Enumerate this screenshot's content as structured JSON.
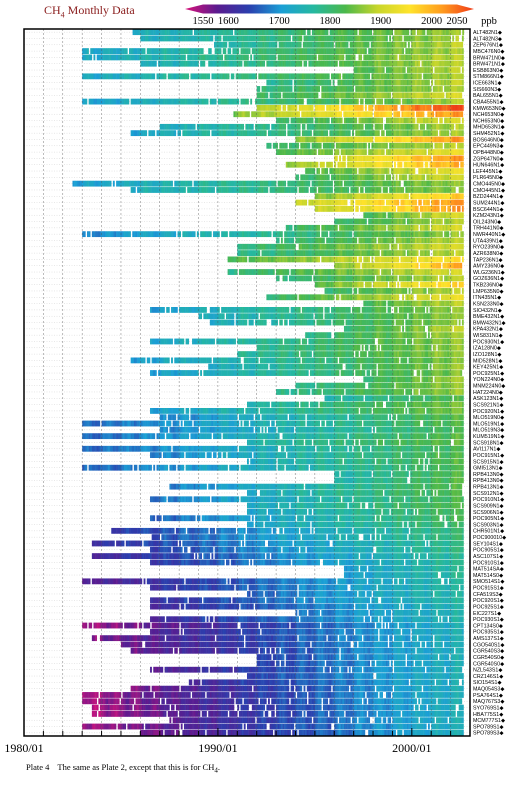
{
  "title": "CH4 Monthly Data",
  "title_prefix": "CH",
  "title_sub": "4",
  "title_rest": " Monthly Data",
  "caption_lead": "Plate 4",
  "caption_text": "The same as Plate 2, except that this is for CH",
  "caption_sub": "4",
  "caption_end": ".",
  "colorbar": {
    "ticks": [
      "1550",
      "1600",
      "1700",
      "1800",
      "1900",
      "2000",
      "2050"
    ],
    "unit": "ppb",
    "colors": [
      "#d8127a",
      "#5b1b8f",
      "#2a3fae",
      "#1b9fd6",
      "#25b8a0",
      "#4cb84a",
      "#c8d62b",
      "#ffe32b",
      "#ff9c1e",
      "#f03a18"
    ]
  },
  "chart_data": {
    "type": "heatmap",
    "title": "CH4 Monthly Data",
    "value_unit": "ppb",
    "value_range": [
      1550,
      2050
    ],
    "xlim": [
      "1980/01",
      "2002/12"
    ],
    "xticks": [
      "1980/01",
      "1990/01",
      "2000/01"
    ],
    "stations": [
      {
        "name": "ALT482N1",
        "start": 1985.6,
        "end": 2002.6,
        "lo": 1740,
        "hi": 1870
      },
      {
        "name": "ALT482N3",
        "start": 1986.0,
        "end": 2002.6,
        "lo": 1740,
        "hi": 1870
      },
      {
        "name": "ZEP676N1",
        "start": 1989.8,
        "end": 2002.6,
        "lo": 1760,
        "hi": 1880
      },
      {
        "name": "MBC476N0",
        "start": 1983.0,
        "end": 2002.6,
        "lo": 1730,
        "hi": 1870
      },
      {
        "name": "BRW471N0",
        "start": 1983.0,
        "end": 2002.6,
        "lo": 1730,
        "hi": 1880
      },
      {
        "name": "BRW471N1",
        "start": 1986.0,
        "end": 2002.6,
        "lo": 1740,
        "hi": 1880
      },
      {
        "name": "ESB863N0",
        "start": 1997.0,
        "end": 2002.6,
        "lo": 1820,
        "hi": 1880
      },
      {
        "name": "STM866N1",
        "start": 1983.0,
        "end": 2002.6,
        "lo": 1730,
        "hi": 1870
      },
      {
        "name": "ICE663N1",
        "start": 1992.5,
        "end": 2002.6,
        "lo": 1780,
        "hi": 1880
      },
      {
        "name": "SIS660N3",
        "start": 1992.0,
        "end": 2002.6,
        "lo": 1790,
        "hi": 1870
      },
      {
        "name": "BAL655N1",
        "start": 1992.0,
        "end": 2002.6,
        "lo": 1800,
        "hi": 1900
      },
      {
        "name": "CBA455N1",
        "start": 1983.0,
        "end": 2002.6,
        "lo": 1720,
        "hi": 1870
      },
      {
        "name": "KMW653N0",
        "start": 1992.0,
        "end": 2002.6,
        "lo": 1870,
        "hi": 2050
      },
      {
        "name": "NCH653N0",
        "start": 1990.8,
        "end": 2002.6,
        "lo": 1850,
        "hi": 2000
      },
      {
        "name": "NCH653N0",
        "start": 1993.0,
        "end": 2002.6,
        "lo": 1800,
        "hi": 1900
      },
      {
        "name": "MHD653N1",
        "start": 1987.0,
        "end": 2002.6,
        "lo": 1740,
        "hi": 1870
      },
      {
        "name": "SHM452N1",
        "start": 1985.5,
        "end": 2002.6,
        "lo": 1730,
        "hi": 1870
      },
      {
        "name": "BOS646N0",
        "start": 1994.0,
        "end": 2002.6,
        "lo": 1850,
        "hi": 2000
      },
      {
        "name": "EPC449N3",
        "start": 1992.5,
        "end": 2002.6,
        "lo": 1800,
        "hi": 1880
      },
      {
        "name": "OPB448N0",
        "start": 1993.0,
        "end": 2002.6,
        "lo": 1820,
        "hi": 1920
      },
      {
        "name": "ZGP647N0",
        "start": 1996.0,
        "end": 2002.6,
        "lo": 1890,
        "hi": 2000
      },
      {
        "name": "HUN646N1",
        "start": 1993.5,
        "end": 2002.6,
        "lo": 1860,
        "hi": 1980
      },
      {
        "name": "LEF445N1",
        "start": 1994.5,
        "end": 2002.6,
        "lo": 1820,
        "hi": 1920
      },
      {
        "name": "PLR645N0",
        "start": 1994.0,
        "end": 2002.6,
        "lo": 1800,
        "hi": 1900
      },
      {
        "name": "CMO445N0",
        "start": 1982.5,
        "end": 2002.6,
        "lo": 1720,
        "hi": 1860
      },
      {
        "name": "CMO445N1",
        "start": 1985.5,
        "end": 2002.6,
        "lo": 1740,
        "hi": 1860
      },
      {
        "name": "BZD244N1",
        "start": 1995.0,
        "end": 2002.6,
        "lo": 1850,
        "hi": 1960
      },
      {
        "name": "SUM244N1",
        "start": 1994.0,
        "end": 2002.6,
        "lo": 1880,
        "hi": 2000
      },
      {
        "name": "BSC644N1",
        "start": 1995.0,
        "end": 2002.6,
        "lo": 1880,
        "hi": 2000
      },
      {
        "name": "KZM243N1",
        "start": 1997.5,
        "end": 2002.6,
        "lo": 1820,
        "hi": 1900
      },
      {
        "name": "OIL243N0",
        "start": 1996.0,
        "end": 2002.6,
        "lo": 1800,
        "hi": 1880
      },
      {
        "name": "TRH441N0",
        "start": 1993.5,
        "end": 2002.6,
        "lo": 1800,
        "hi": 1900
      },
      {
        "name": "NWR440N1",
        "start": 1983.0,
        "end": 2002.6,
        "lo": 1700,
        "hi": 1860
      },
      {
        "name": "UTA439N1",
        "start": 1993.0,
        "end": 2002.6,
        "lo": 1790,
        "hi": 1880
      },
      {
        "name": "RYO239N0",
        "start": 1991.0,
        "end": 2002.6,
        "lo": 1790,
        "hi": 1900
      },
      {
        "name": "AZR638N0",
        "start": 1991.0,
        "end": 2002.6,
        "lo": 1780,
        "hi": 1880
      },
      {
        "name": "TAP236N1",
        "start": 1990.5,
        "end": 2002.6,
        "lo": 1820,
        "hi": 1940
      },
      {
        "name": "AMY236N0",
        "start": 1996.0,
        "end": 2002.6,
        "lo": 1850,
        "hi": 1990
      },
      {
        "name": "WLG236N1",
        "start": 1990.5,
        "end": 2002.6,
        "lo": 1790,
        "hi": 1900
      },
      {
        "name": "GOZ636N1",
        "start": 1993.0,
        "end": 2002.6,
        "lo": 1790,
        "hi": 1880
      },
      {
        "name": "TKB236N0",
        "start": 1995.0,
        "end": 2002.6,
        "lo": 1830,
        "hi": 1960
      },
      {
        "name": "LMP635N0",
        "start": 1995.5,
        "end": 2002.6,
        "lo": 1800,
        "hi": 1880
      },
      {
        "name": "ITN435N1",
        "start": 1992.5,
        "end": 2002.6,
        "lo": 1800,
        "hi": 1920
      },
      {
        "name": "KSN233N0",
        "start": 1997.5,
        "end": 2002.6,
        "lo": 1820,
        "hi": 1880
      },
      {
        "name": "SIO432N1",
        "start": 1986.5,
        "end": 2002.6,
        "lo": 1720,
        "hi": 1860
      },
      {
        "name": "BME432N1",
        "start": 1989.0,
        "end": 2002.6,
        "lo": 1740,
        "hi": 1860
      },
      {
        "name": "BMW432N1",
        "start": 1989.5,
        "end": 2002.6,
        "lo": 1740,
        "hi": 1860
      },
      {
        "name": "KPA432N1",
        "start": 1996.5,
        "end": 2002.6,
        "lo": 1800,
        "hi": 1880
      },
      {
        "name": "WIS831N1",
        "start": 1994.5,
        "end": 2002.6,
        "lo": 1790,
        "hi": 1870
      },
      {
        "name": "POC930N1",
        "start": 1986.5,
        "end": 2002.6,
        "lo": 1730,
        "hi": 1860
      },
      {
        "name": "IZA128N0",
        "start": 1992.0,
        "end": 2002.6,
        "lo": 1780,
        "hi": 1860
      },
      {
        "name": "IZO128N1",
        "start": 1991.0,
        "end": 2002.6,
        "lo": 1770,
        "hi": 1860
      },
      {
        "name": "MID528N1",
        "start": 1985.5,
        "end": 2002.6,
        "lo": 1720,
        "hi": 1850
      },
      {
        "name": "KEY425N1",
        "start": 1989.5,
        "end": 2002.6,
        "lo": 1740,
        "hi": 1860
      },
      {
        "name": "POC925N1",
        "start": 1986.5,
        "end": 2002.6,
        "lo": 1720,
        "hi": 1850
      },
      {
        "name": "YON224N0",
        "start": 1997.5,
        "end": 2002.6,
        "lo": 1800,
        "hi": 1870
      },
      {
        "name": "MNM224N0",
        "start": 1994.0,
        "end": 2002.6,
        "lo": 1780,
        "hi": 1860
      },
      {
        "name": "HAT224N0",
        "start": 1993.0,
        "end": 2002.6,
        "lo": 1780,
        "hi": 1860
      },
      {
        "name": "ASK123N1",
        "start": 1995.5,
        "end": 2002.6,
        "lo": 1760,
        "hi": 1830
      },
      {
        "name": "SCS921N1",
        "start": 1991.5,
        "end": 2002.6,
        "lo": 1760,
        "hi": 1850
      },
      {
        "name": "POC920N1",
        "start": 1986.5,
        "end": 2002.6,
        "lo": 1720,
        "hi": 1850
      },
      {
        "name": "MLO519N0",
        "start": 1987.0,
        "end": 2002.6,
        "lo": 1700,
        "hi": 1830
      },
      {
        "name": "MLO519N1",
        "start": 1983.0,
        "end": 2002.6,
        "lo": 1680,
        "hi": 1830
      },
      {
        "name": "MLO519N3",
        "start": 1987.0,
        "end": 2002.6,
        "lo": 1700,
        "hi": 1820
      },
      {
        "name": "KUM519N1",
        "start": 1983.0,
        "end": 2002.6,
        "lo": 1680,
        "hi": 1830
      },
      {
        "name": "SCS918N1",
        "start": 1991.5,
        "end": 2002.6,
        "lo": 1760,
        "hi": 1840
      },
      {
        "name": "AVI117N1",
        "start": 1983.0,
        "end": 2002.6,
        "lo": 1680,
        "hi": 1820
      },
      {
        "name": "POC915N1",
        "start": 1986.5,
        "end": 2002.6,
        "lo": 1700,
        "hi": 1830
      },
      {
        "name": "SCS915N1",
        "start": 1991.5,
        "end": 2002.6,
        "lo": 1740,
        "hi": 1830
      },
      {
        "name": "GMI513N1",
        "start": 1983.0,
        "end": 2002.6,
        "lo": 1680,
        "hi": 1820
      },
      {
        "name": "RPB413N0",
        "start": 1996.0,
        "end": 2002.6,
        "lo": 1760,
        "hi": 1830
      },
      {
        "name": "RPB413N0",
        "start": 1996.0,
        "end": 2002.6,
        "lo": 1760,
        "hi": 1830
      },
      {
        "name": "RPB413N1",
        "start": 1987.5,
        "end": 2002.6,
        "lo": 1700,
        "hi": 1830
      },
      {
        "name": "SCS912N1",
        "start": 1991.5,
        "end": 2002.6,
        "lo": 1740,
        "hi": 1830
      },
      {
        "name": "POC910N1",
        "start": 1986.5,
        "end": 2002.6,
        "lo": 1690,
        "hi": 1820
      },
      {
        "name": "SCS909N1",
        "start": 1991.5,
        "end": 2002.6,
        "lo": 1740,
        "hi": 1830
      },
      {
        "name": "SCS906N1",
        "start": 1991.5,
        "end": 2002.6,
        "lo": 1730,
        "hi": 1820
      },
      {
        "name": "POC905N1",
        "start": 1986.5,
        "end": 2002.6,
        "lo": 1680,
        "hi": 1820
      },
      {
        "name": "SCS903N1",
        "start": 1991.5,
        "end": 2002.6,
        "lo": 1730,
        "hi": 1810
      },
      {
        "name": "CHR501N1",
        "start": 1984.5,
        "end": 2002.6,
        "lo": 1650,
        "hi": 1800
      },
      {
        "name": "POC900010",
        "start": 1986.5,
        "end": 2002.6,
        "lo": 1670,
        "hi": 1800
      },
      {
        "name": "SEY104S1",
        "start": 1983.5,
        "end": 2002.6,
        "lo": 1640,
        "hi": 1790
      },
      {
        "name": "POC905S1",
        "start": 1986.5,
        "end": 2002.6,
        "lo": 1660,
        "hi": 1790
      },
      {
        "name": "ASC107S1",
        "start": 1983.5,
        "end": 2002.6,
        "lo": 1630,
        "hi": 1780
      },
      {
        "name": "POC910S1",
        "start": 1986.5,
        "end": 2002.6,
        "lo": 1650,
        "hi": 1780
      },
      {
        "name": "MAT514SA",
        "start": 1996.5,
        "end": 2002.6,
        "lo": 1720,
        "hi": 1780
      },
      {
        "name": "MAT514S0",
        "start": 1996.5,
        "end": 2002.6,
        "lo": 1720,
        "hi": 1780
      },
      {
        "name": "SMO514S1",
        "start": 1983.0,
        "end": 2002.6,
        "lo": 1610,
        "hi": 1770
      },
      {
        "name": "POC915S1",
        "start": 1986.5,
        "end": 2002.6,
        "lo": 1640,
        "hi": 1770
      },
      {
        "name": "CFA519S3",
        "start": 1991.5,
        "end": 2002.6,
        "lo": 1680,
        "hi": 1770
      },
      {
        "name": "POC920S1",
        "start": 1986.5,
        "end": 2002.6,
        "lo": 1640,
        "hi": 1770
      },
      {
        "name": "POC925S1",
        "start": 1986.5,
        "end": 2002.6,
        "lo": 1630,
        "hi": 1760
      },
      {
        "name": "EIC227S1",
        "start": 1994.0,
        "end": 2002.6,
        "lo": 1690,
        "hi": 1760
      },
      {
        "name": "POC930S1",
        "start": 1986.5,
        "end": 2002.6,
        "lo": 1630,
        "hi": 1760
      },
      {
        "name": "CPT134S0",
        "start": 1983.0,
        "end": 2002.6,
        "lo": 1570,
        "hi": 1750
      },
      {
        "name": "POC935S1",
        "start": 1986.5,
        "end": 2002.6,
        "lo": 1620,
        "hi": 1750
      },
      {
        "name": "AMS137S1",
        "start": 1983.5,
        "end": 2002.6,
        "lo": 1590,
        "hi": 1750
      },
      {
        "name": "CGO540S1",
        "start": 1985.0,
        "end": 2002.6,
        "lo": 1600,
        "hi": 1750
      },
      {
        "name": "CGR540S3",
        "start": 1985.5,
        "end": 2002.6,
        "lo": 1600,
        "hi": 1750
      },
      {
        "name": "CGR540S0",
        "start": 1992.0,
        "end": 2002.6,
        "lo": 1660,
        "hi": 1750
      },
      {
        "name": "CGR540S0",
        "start": 1992.0,
        "end": 2002.6,
        "lo": 1660,
        "hi": 1750
      },
      {
        "name": "NZL543S1",
        "start": 1986.5,
        "end": 2002.6,
        "lo": 1610,
        "hi": 1750
      },
      {
        "name": "CRZ146S1",
        "start": 1991.5,
        "end": 2002.6,
        "lo": 1660,
        "hi": 1750
      },
      {
        "name": "SIO154S1",
        "start": 1988.5,
        "end": 2002.6,
        "lo": 1630,
        "hi": 1750
      },
      {
        "name": "MAQ054S3",
        "start": 1985.5,
        "end": 2002.6,
        "lo": 1590,
        "hi": 1750
      },
      {
        "name": "PSA764S1",
        "start": 1983.0,
        "end": 2002.6,
        "lo": 1570,
        "hi": 1750
      },
      {
        "name": "MAQ767S3",
        "start": 1983.0,
        "end": 2002.6,
        "lo": 1570,
        "hi": 1750
      },
      {
        "name": "SYO769S1",
        "start": 1983.5,
        "end": 2002.6,
        "lo": 1570,
        "hi": 1750
      },
      {
        "name": "HBA775S1",
        "start": 1983.5,
        "end": 2002.6,
        "lo": 1570,
        "hi": 1750
      },
      {
        "name": "MCM777S1",
        "start": 1987.5,
        "end": 2002.6,
        "lo": 1610,
        "hi": 1750
      },
      {
        "name": "SPO789S1",
        "start": 1983.0,
        "end": 2002.6,
        "lo": 1570,
        "hi": 1750
      },
      {
        "name": "SPO789S3",
        "start": 1986.0,
        "end": 2002.6,
        "lo": 1590,
        "hi": 1750
      }
    ]
  }
}
